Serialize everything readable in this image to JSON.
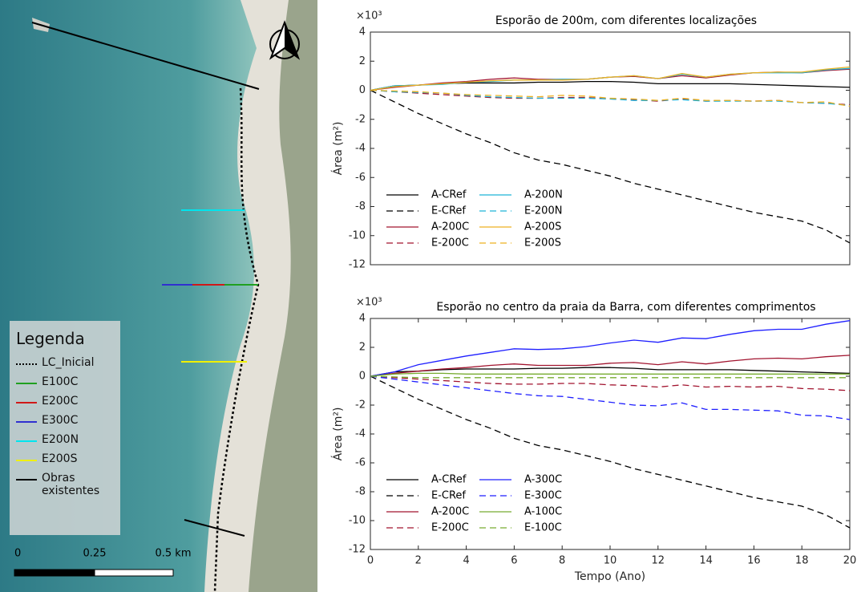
{
  "map": {
    "legend": {
      "title": "Legenda",
      "items": [
        "LC_Inicial",
        "E100C",
        "E200C",
        "E300C",
        "E200N",
        "E200S",
        "Obras existentes"
      ]
    },
    "scale": {
      "labels": [
        "0",
        "0.25",
        "0.5 km"
      ]
    }
  },
  "chart_data": [
    {
      "type": "line",
      "title": "Esporão de 200m, com diferentes localizações",
      "y_exponent_label": "×10³",
      "ylabel": "Área (m²)",
      "x": [
        0,
        1,
        2,
        3,
        4,
        5,
        6,
        7,
        8,
        9,
        10,
        11,
        12,
        13,
        14,
        15,
        16,
        17,
        18,
        19,
        20
      ],
      "xlim": [
        0,
        20
      ],
      "ylim": [
        -12,
        4
      ],
      "yticks": [
        -12,
        -10,
        -8,
        -6,
        -4,
        -2,
        0,
        2,
        4
      ],
      "grid": false,
      "legend": "lower left",
      "series": [
        {
          "name": "A-CRef",
          "color": "#000000",
          "dashed": false,
          "values": [
            0,
            0.3,
            0.35,
            0.45,
            0.5,
            0.5,
            0.5,
            0.55,
            0.55,
            0.6,
            0.6,
            0.55,
            0.45,
            0.45,
            0.45,
            0.45,
            0.4,
            0.35,
            0.3,
            0.25,
            0.2
          ]
        },
        {
          "name": "E-CRef",
          "color": "#000000",
          "dashed": true,
          "values": [
            0,
            -0.8,
            -1.6,
            -2.3,
            -3.0,
            -3.6,
            -4.3,
            -4.8,
            -5.1,
            -5.5,
            -5.9,
            -6.4,
            -6.8,
            -7.2,
            -7.6,
            -8.0,
            -8.4,
            -8.7,
            -9.0,
            -9.6,
            -10.5
          ]
        },
        {
          "name": "A-200C",
          "color": "#a2142f",
          "dashed": false,
          "values": [
            0,
            0.2,
            0.35,
            0.5,
            0.6,
            0.75,
            0.85,
            0.75,
            0.75,
            0.75,
            0.9,
            0.95,
            0.8,
            1.0,
            0.85,
            1.05,
            1.2,
            1.25,
            1.2,
            1.35,
            1.45
          ]
        },
        {
          "name": "E-200C",
          "color": "#a2142f",
          "dashed": true,
          "values": [
            0,
            -0.1,
            -0.2,
            -0.3,
            -0.4,
            -0.5,
            -0.55,
            -0.55,
            -0.5,
            -0.5,
            -0.6,
            -0.65,
            -0.75,
            -0.6,
            -0.75,
            -0.7,
            -0.75,
            -0.7,
            -0.85,
            -0.9,
            -1.0
          ]
        },
        {
          "name": "A-200N",
          "color": "#1fb4d8",
          "dashed": false,
          "values": [
            0,
            0.3,
            0.35,
            0.4,
            0.55,
            0.6,
            0.7,
            0.7,
            0.75,
            0.75,
            0.9,
            1.0,
            0.8,
            1.1,
            0.9,
            1.1,
            1.2,
            1.2,
            1.2,
            1.4,
            1.5
          ]
        },
        {
          "name": "E-200N",
          "color": "#1fb4d8",
          "dashed": true,
          "values": [
            0,
            -0.1,
            -0.15,
            -0.2,
            -0.35,
            -0.45,
            -0.5,
            -0.55,
            -0.55,
            -0.55,
            -0.6,
            -0.7,
            -0.7,
            -0.65,
            -0.75,
            -0.75,
            -0.75,
            -0.75,
            -0.85,
            -0.9,
            -1.05
          ]
        },
        {
          "name": "A-200S",
          "color": "#edb120",
          "dashed": false,
          "values": [
            0,
            0.25,
            0.35,
            0.45,
            0.55,
            0.65,
            0.7,
            0.7,
            0.7,
            0.75,
            0.9,
            1.0,
            0.8,
            1.15,
            0.9,
            1.1,
            1.2,
            1.25,
            1.25,
            1.45,
            1.6
          ]
        },
        {
          "name": "E-200S",
          "color": "#edb120",
          "dashed": true,
          "values": [
            0,
            -0.05,
            -0.1,
            -0.2,
            -0.3,
            -0.35,
            -0.4,
            -0.45,
            -0.35,
            -0.4,
            -0.55,
            -0.6,
            -0.7,
            -0.55,
            -0.7,
            -0.7,
            -0.75,
            -0.7,
            -0.85,
            -0.8,
            -1.1
          ]
        }
      ]
    },
    {
      "type": "line",
      "title": "Esporão no centro da praia da Barra, com diferentes comprimentos",
      "y_exponent_label": "×10³",
      "ylabel": "Área (m²)",
      "xlabel": "Tempo (Ano)",
      "x": [
        0,
        1,
        2,
        3,
        4,
        5,
        6,
        7,
        8,
        9,
        10,
        11,
        12,
        13,
        14,
        15,
        16,
        17,
        18,
        19,
        20
      ],
      "xlim": [
        0,
        20
      ],
      "xticks": [
        0,
        2,
        4,
        6,
        8,
        10,
        12,
        14,
        16,
        18,
        20
      ],
      "ylim": [
        -12,
        4
      ],
      "yticks": [
        -12,
        -10,
        -8,
        -6,
        -4,
        -2,
        0,
        2,
        4
      ],
      "grid": false,
      "legend": "lower left",
      "series": [
        {
          "name": "A-CRef",
          "color": "#000000",
          "dashed": false,
          "values": [
            0,
            0.3,
            0.35,
            0.45,
            0.5,
            0.5,
            0.5,
            0.55,
            0.55,
            0.6,
            0.6,
            0.55,
            0.45,
            0.45,
            0.45,
            0.45,
            0.4,
            0.35,
            0.3,
            0.25,
            0.2
          ]
        },
        {
          "name": "E-CRef",
          "color": "#000000",
          "dashed": true,
          "values": [
            0,
            -0.8,
            -1.6,
            -2.3,
            -3.0,
            -3.6,
            -4.3,
            -4.8,
            -5.1,
            -5.5,
            -5.9,
            -6.4,
            -6.8,
            -7.2,
            -7.6,
            -8.0,
            -8.4,
            -8.7,
            -9.0,
            -9.6,
            -10.5
          ]
        },
        {
          "name": "A-200C",
          "color": "#a2142f",
          "dashed": false,
          "values": [
            0,
            0.2,
            0.35,
            0.5,
            0.6,
            0.75,
            0.85,
            0.75,
            0.75,
            0.75,
            0.9,
            0.95,
            0.8,
            1.0,
            0.85,
            1.05,
            1.2,
            1.25,
            1.2,
            1.35,
            1.45
          ]
        },
        {
          "name": "E-200C",
          "color": "#a2142f",
          "dashed": true,
          "values": [
            0,
            -0.1,
            -0.2,
            -0.3,
            -0.4,
            -0.5,
            -0.55,
            -0.55,
            -0.5,
            -0.5,
            -0.6,
            -0.65,
            -0.75,
            -0.6,
            -0.75,
            -0.7,
            -0.75,
            -0.7,
            -0.85,
            -0.9,
            -1.0
          ]
        },
        {
          "name": "A-300C",
          "color": "#1f1fff",
          "dashed": false,
          "values": [
            0,
            0.3,
            0.8,
            1.1,
            1.4,
            1.65,
            1.9,
            1.85,
            1.9,
            2.05,
            2.3,
            2.5,
            2.35,
            2.65,
            2.6,
            2.9,
            3.15,
            3.25,
            3.25,
            3.6,
            3.85
          ]
        },
        {
          "name": "E-300C",
          "color": "#1f1fff",
          "dashed": true,
          "values": [
            0,
            -0.2,
            -0.4,
            -0.6,
            -0.8,
            -1.0,
            -1.2,
            -1.35,
            -1.4,
            -1.6,
            -1.8,
            -2.0,
            -2.05,
            -1.85,
            -2.3,
            -2.3,
            -2.35,
            -2.4,
            -2.7,
            -2.75,
            -3.0
          ]
        },
        {
          "name": "A-100C",
          "color": "#77ac30",
          "dashed": false,
          "values": [
            0,
            0.15,
            0.2,
            0.2,
            0.15,
            0.15,
            0.15,
            0.15,
            0.15,
            0.15,
            0.15,
            0.15,
            0.15,
            0.15,
            0.15,
            0.15,
            0.15,
            0.15,
            0.15,
            0.15,
            0.15
          ]
        },
        {
          "name": "E-100C",
          "color": "#77ac30",
          "dashed": true,
          "values": [
            0,
            -0.05,
            -0.1,
            -0.1,
            -0.1,
            -0.1,
            -0.1,
            -0.1,
            -0.1,
            -0.1,
            -0.1,
            -0.1,
            -0.1,
            -0.1,
            -0.1,
            -0.1,
            -0.1,
            -0.1,
            -0.1,
            -0.1,
            -0.1
          ]
        }
      ]
    }
  ]
}
